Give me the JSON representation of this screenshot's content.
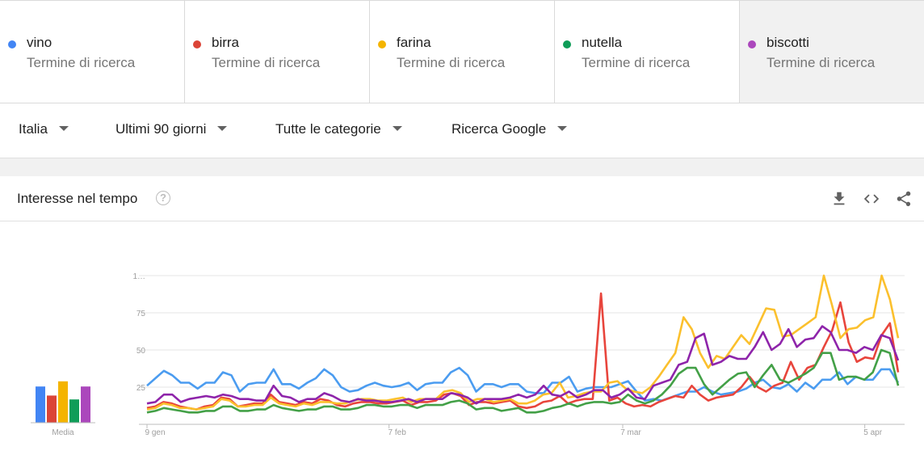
{
  "terms": [
    {
      "name": "vino",
      "sub": "Termine di ricerca",
      "color": "#4285f4"
    },
    {
      "name": "birra",
      "sub": "Termine di ricerca",
      "color": "#db4437"
    },
    {
      "name": "farina",
      "sub": "Termine di ricerca",
      "color": "#f4b400"
    },
    {
      "name": "nutella",
      "sub": "Termine di ricerca",
      "color": "#0f9d58"
    },
    {
      "name": "biscotti",
      "sub": "Termine di ricerca",
      "color": "#ab47bc"
    }
  ],
  "filters": {
    "country": "Italia",
    "period": "Ultimi 90 giorni",
    "category": "Tutte le categorie",
    "source": "Ricerca Google"
  },
  "card": {
    "title": "Interesse nel tempo",
    "help": "?"
  },
  "icons": {
    "download": "download-icon",
    "embed": "embed-code-icon",
    "share": "share-icon"
  },
  "chart_data": {
    "type": "line",
    "average_label": "Media",
    "averages": [
      28,
      21,
      32,
      18,
      28
    ],
    "x_ticks": [
      {
        "label": "9 gen",
        "day": 0
      },
      {
        "label": "7 feb",
        "day": 29
      },
      {
        "label": "7 mar",
        "day": 57
      },
      {
        "label": "5 apr",
        "day": 86
      }
    ],
    "y_ticks": [
      "25",
      "50",
      "75",
      "1…"
    ],
    "ylim": [
      0,
      100
    ],
    "series": [
      {
        "name": "vino",
        "color": "#4b9cf0",
        "values": [
          26,
          31,
          36,
          33,
          28,
          28,
          24,
          28,
          28,
          35,
          33,
          22,
          27,
          28,
          28,
          37,
          27,
          27,
          24,
          28,
          31,
          37,
          33,
          25,
          22,
          23,
          26,
          28,
          26,
          25,
          26,
          28,
          23,
          27,
          28,
          28,
          35,
          38,
          33,
          22,
          27,
          27,
          25,
          27,
          27,
          22,
          21,
          21,
          28,
          28,
          32,
          22,
          24,
          25,
          25,
          25,
          27,
          29,
          22,
          16,
          17,
          16,
          18,
          20,
          22,
          22,
          25,
          22,
          20,
          21,
          22,
          24,
          28,
          30,
          25,
          24,
          27,
          22,
          28,
          24,
          30,
          30,
          35,
          27,
          32,
          30,
          30,
          37,
          37,
          28
        ]
      },
      {
        "name": "birra",
        "color": "#e8453c",
        "values": [
          11,
          12,
          15,
          14,
          12,
          11,
          10,
          12,
          13,
          18,
          17,
          12,
          13,
          14,
          14,
          20,
          15,
          14,
          13,
          15,
          14,
          17,
          16,
          13,
          12,
          14,
          15,
          15,
          14,
          14,
          15,
          16,
          13,
          15,
          15,
          16,
          20,
          21,
          19,
          13,
          15,
          15,
          14,
          15,
          16,
          12,
          11,
          12,
          15,
          16,
          19,
          14,
          16,
          17,
          17,
          88,
          16,
          18,
          14,
          12,
          13,
          12,
          15,
          17,
          19,
          18,
          26,
          20,
          16,
          18,
          19,
          20,
          25,
          32,
          25,
          22,
          26,
          28,
          42,
          30,
          38,
          40,
          52,
          63,
          82,
          55,
          42,
          45,
          44,
          60,
          68,
          35
        ]
      },
      {
        "name": "farina",
        "color": "#fbc02d",
        "values": [
          10,
          11,
          14,
          13,
          11,
          11,
          10,
          11,
          12,
          17,
          16,
          12,
          12,
          13,
          13,
          18,
          14,
          13,
          12,
          14,
          13,
          15,
          15,
          14,
          14,
          16,
          17,
          17,
          16,
          16,
          17,
          18,
          15,
          17,
          17,
          17,
          22,
          23,
          21,
          15,
          17,
          17,
          15,
          16,
          17,
          14,
          14,
          16,
          20,
          21,
          28,
          18,
          19,
          21,
          22,
          22,
          28,
          29,
          24,
          22,
          21,
          25,
          32,
          40,
          48,
          72,
          64,
          48,
          38,
          46,
          44,
          52,
          60,
          54,
          66,
          78,
          77,
          59,
          60,
          64,
          68,
          72,
          100,
          80,
          58,
          64,
          65,
          70,
          72,
          100,
          84,
          58
        ]
      },
      {
        "name": "nutella",
        "color": "#43a047",
        "values": [
          8,
          9,
          11,
          10,
          9,
          8,
          8,
          9,
          9,
          12,
          12,
          9,
          9,
          10,
          10,
          13,
          11,
          10,
          9,
          10,
          10,
          12,
          12,
          10,
          10,
          11,
          13,
          13,
          12,
          12,
          13,
          13,
          11,
          13,
          13,
          13,
          15,
          16,
          14,
          10,
          11,
          11,
          9,
          10,
          11,
          8,
          8,
          9,
          11,
          12,
          14,
          12,
          14,
          15,
          15,
          14,
          15,
          20,
          16,
          14,
          16,
          20,
          26,
          34,
          38,
          38,
          27,
          20,
          25,
          30,
          34,
          35,
          25,
          33,
          40,
          30,
          28,
          31,
          34,
          38,
          48,
          48,
          30,
          32,
          32,
          30,
          35,
          50,
          48,
          26
        ]
      },
      {
        "name": "biscotti",
        "color": "#8e24aa",
        "values": [
          14,
          15,
          20,
          20,
          15,
          17,
          18,
          19,
          18,
          20,
          19,
          17,
          17,
          16,
          16,
          26,
          19,
          18,
          15,
          17,
          17,
          21,
          19,
          16,
          15,
          17,
          16,
          16,
          15,
          15,
          16,
          17,
          15,
          17,
          17,
          17,
          21,
          20,
          18,
          14,
          17,
          17,
          17,
          18,
          20,
          18,
          20,
          26,
          20,
          19,
          22,
          18,
          20,
          23,
          23,
          18,
          20,
          24,
          18,
          17,
          26,
          28,
          30,
          40,
          42,
          58,
          61,
          40,
          42,
          46,
          44,
          44,
          52,
          62,
          50,
          54,
          64,
          52,
          57,
          58,
          66,
          62,
          50,
          50,
          48,
          52,
          50,
          60,
          58,
          43
        ]
      }
    ]
  }
}
